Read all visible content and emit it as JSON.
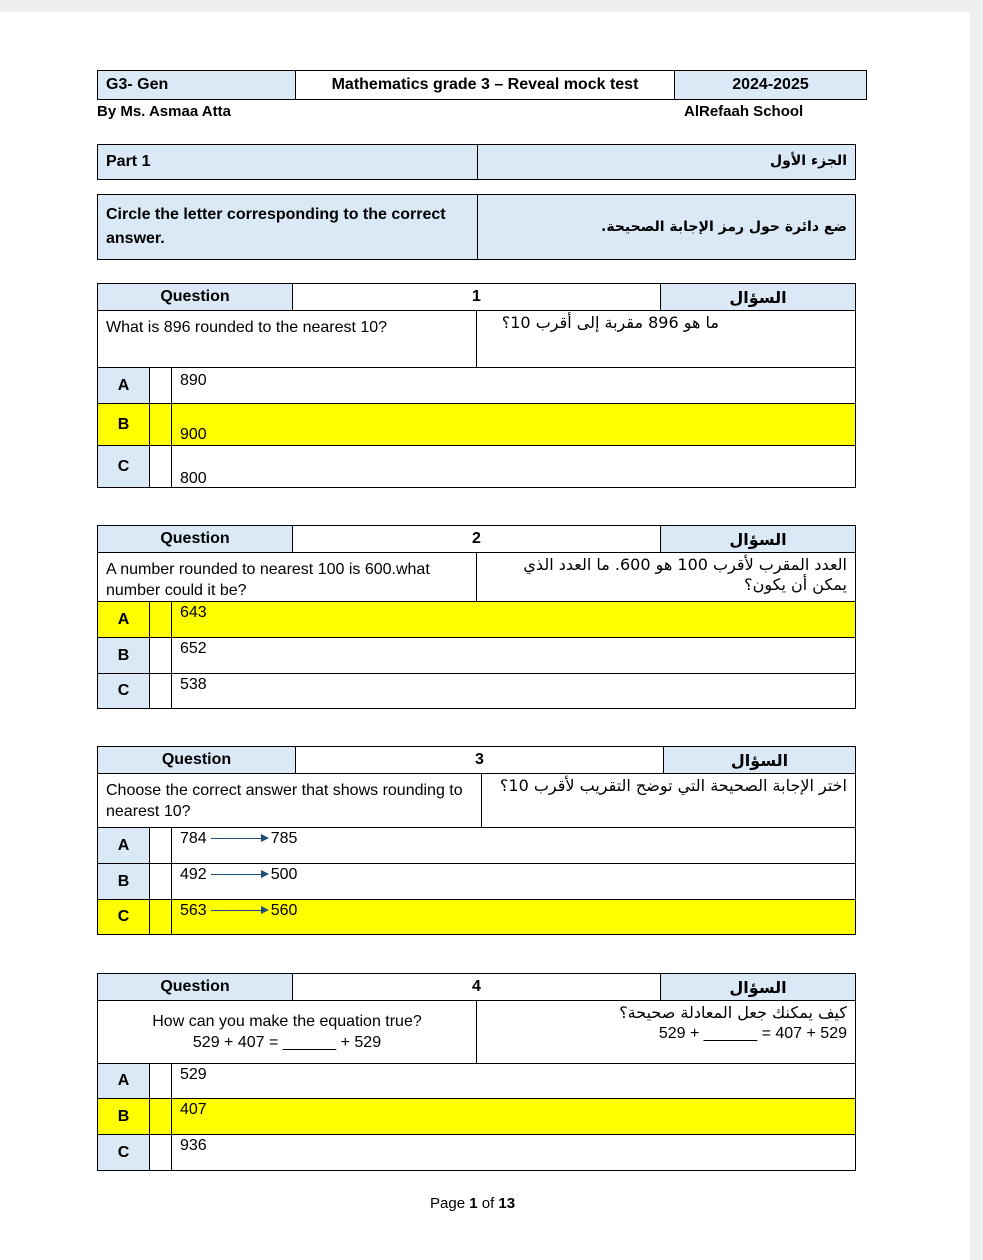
{
  "header": {
    "grade": "G3- Gen",
    "title": "Mathematics grade 3 – Reveal mock test",
    "year": "2024-2025",
    "author": "By Ms. Asmaa Atta",
    "school": "AlRefaah School"
  },
  "part": {
    "en": "Part 1",
    "ar": "الجزء الأول"
  },
  "instruction": {
    "en": "Circle the letter corresponding to the correct answer.",
    "ar": "ضع دائرة حول رمز الإجابة الصحيحة."
  },
  "colors": {
    "header_blue": "#dbe8f6",
    "highlight": "#ffff00"
  },
  "questions": [
    {
      "label": "Question",
      "number": "1",
      "label_ar": "السؤال",
      "text": "What is 896 rounded to the nearest 10?",
      "text_ar": "ما هو 896 مقربة إلى أقرب 10؟",
      "options": [
        {
          "letter": "A",
          "value": "890"
        },
        {
          "letter": "B",
          "value": "900"
        },
        {
          "letter": "C",
          "value": "800"
        }
      ],
      "correct": "B"
    },
    {
      "label": "Question",
      "number": "2",
      "label_ar": "السؤال",
      "text": "A number rounded to nearest 100 is 600.what number could it be?",
      "text_ar": "العدد المقرب لأقرب 100 هو 600. ما العدد الذي يمكن أن يكون؟",
      "options": [
        {
          "letter": "A",
          "value": "643"
        },
        {
          "letter": "B",
          "value": "652"
        },
        {
          "letter": "C",
          "value": "538"
        }
      ],
      "correct": "A"
    },
    {
      "label": "Question",
      "number": "3",
      "label_ar": "السؤال",
      "text": "Choose the correct answer that shows rounding to nearest 10?",
      "text_ar": "اختر الإجابة الصحيحة التي توضح التقريب لأقرب 10؟",
      "options": [
        {
          "letter": "A",
          "value": "784",
          "to": "785"
        },
        {
          "letter": "B",
          "value": "492",
          "to": "500"
        },
        {
          "letter": "C",
          "value": "563",
          "to": "560"
        }
      ],
      "correct": "C"
    },
    {
      "label": "Question",
      "number": "4",
      "label_ar": "السؤال",
      "text": "How can you make the equation true?",
      "equation": "529 + 407 = ______ + 529",
      "text_ar": "كيف يمكنك جعل المعادلة صحيحة؟",
      "equation_ar": "529 + ______ = 407 + 529",
      "options": [
        {
          "letter": "A",
          "value": "529"
        },
        {
          "letter": "B",
          "value": "407"
        },
        {
          "letter": "C",
          "value": "936"
        }
      ],
      "correct": "B"
    }
  ],
  "footer": {
    "page_prefix": "Page",
    "page": "1",
    "of": "of",
    "total": "13"
  }
}
